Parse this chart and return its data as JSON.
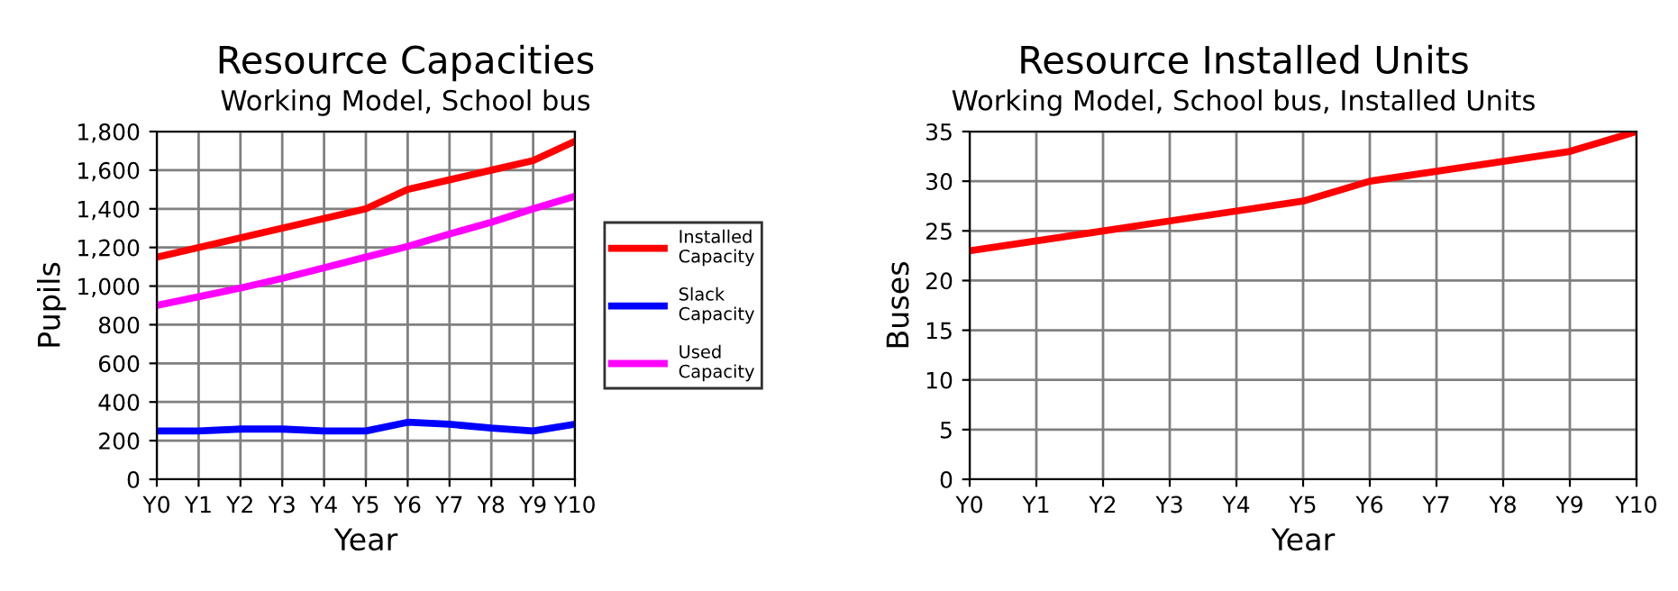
{
  "chart_data": [
    {
      "type": "line",
      "title": "Resource Capacities",
      "subtitle": "Working Model, School bus",
      "xlabel": "Year",
      "ylabel": "Pupils",
      "categories": [
        "Y0",
        "Y1",
        "Y2",
        "Y3",
        "Y4",
        "Y5",
        "Y6",
        "Y7",
        "Y8",
        "Y9",
        "Y10"
      ],
      "series": [
        {
          "name": "Installed Capacity",
          "color": "#ff0000",
          "values": [
            1150,
            1200,
            1250,
            1300,
            1350,
            1400,
            1500,
            1550,
            1600,
            1650,
            1750
          ]
        },
        {
          "name": "Slack Capacity",
          "color": "#0000ff",
          "values": [
            250,
            250,
            260,
            260,
            250,
            250,
            295,
            285,
            265,
            250,
            285
          ]
        },
        {
          "name": "Used Capacity",
          "color": "#ff00ff",
          "values": [
            900,
            945,
            990,
            1040,
            1095,
            1150,
            1205,
            1270,
            1330,
            1400,
            1465
          ]
        }
      ],
      "ylim": [
        0,
        1800
      ],
      "yticks": [
        {
          "value": 0,
          "label": "0"
        },
        {
          "value": 200,
          "label": "200"
        },
        {
          "value": 400,
          "label": "400"
        },
        {
          "value": 600,
          "label": "600"
        },
        {
          "value": 800,
          "label": "800"
        },
        {
          "value": 1000,
          "label": "1,000"
        },
        {
          "value": 1200,
          "label": "1,200"
        },
        {
          "value": 1400,
          "label": "1,400"
        },
        {
          "value": 1600,
          "label": "1,600"
        },
        {
          "value": 1800,
          "label": "1,800"
        }
      ],
      "grid": true,
      "legend": "right",
      "marker": "none",
      "line_style": "solid"
    },
    {
      "type": "line",
      "title": "Resource Installed Units",
      "subtitle": "Working Model, School bus, Installed Units",
      "xlabel": "Year",
      "ylabel": "Buses",
      "categories": [
        "Y0",
        "Y1",
        "Y2",
        "Y3",
        "Y4",
        "Y5",
        "Y6",
        "Y7",
        "Y8",
        "Y9",
        "Y10"
      ],
      "series": [
        {
          "color": "#ff0000",
          "values": [
            23,
            24,
            25,
            26,
            27,
            28,
            30,
            31,
            32,
            33,
            35
          ]
        }
      ],
      "ylim": [
        0,
        35
      ],
      "yticks": [
        0,
        5,
        10,
        15,
        20,
        25,
        30,
        35
      ],
      "grid": true,
      "legend": false,
      "marker": "none",
      "line_style": "solid"
    }
  ]
}
